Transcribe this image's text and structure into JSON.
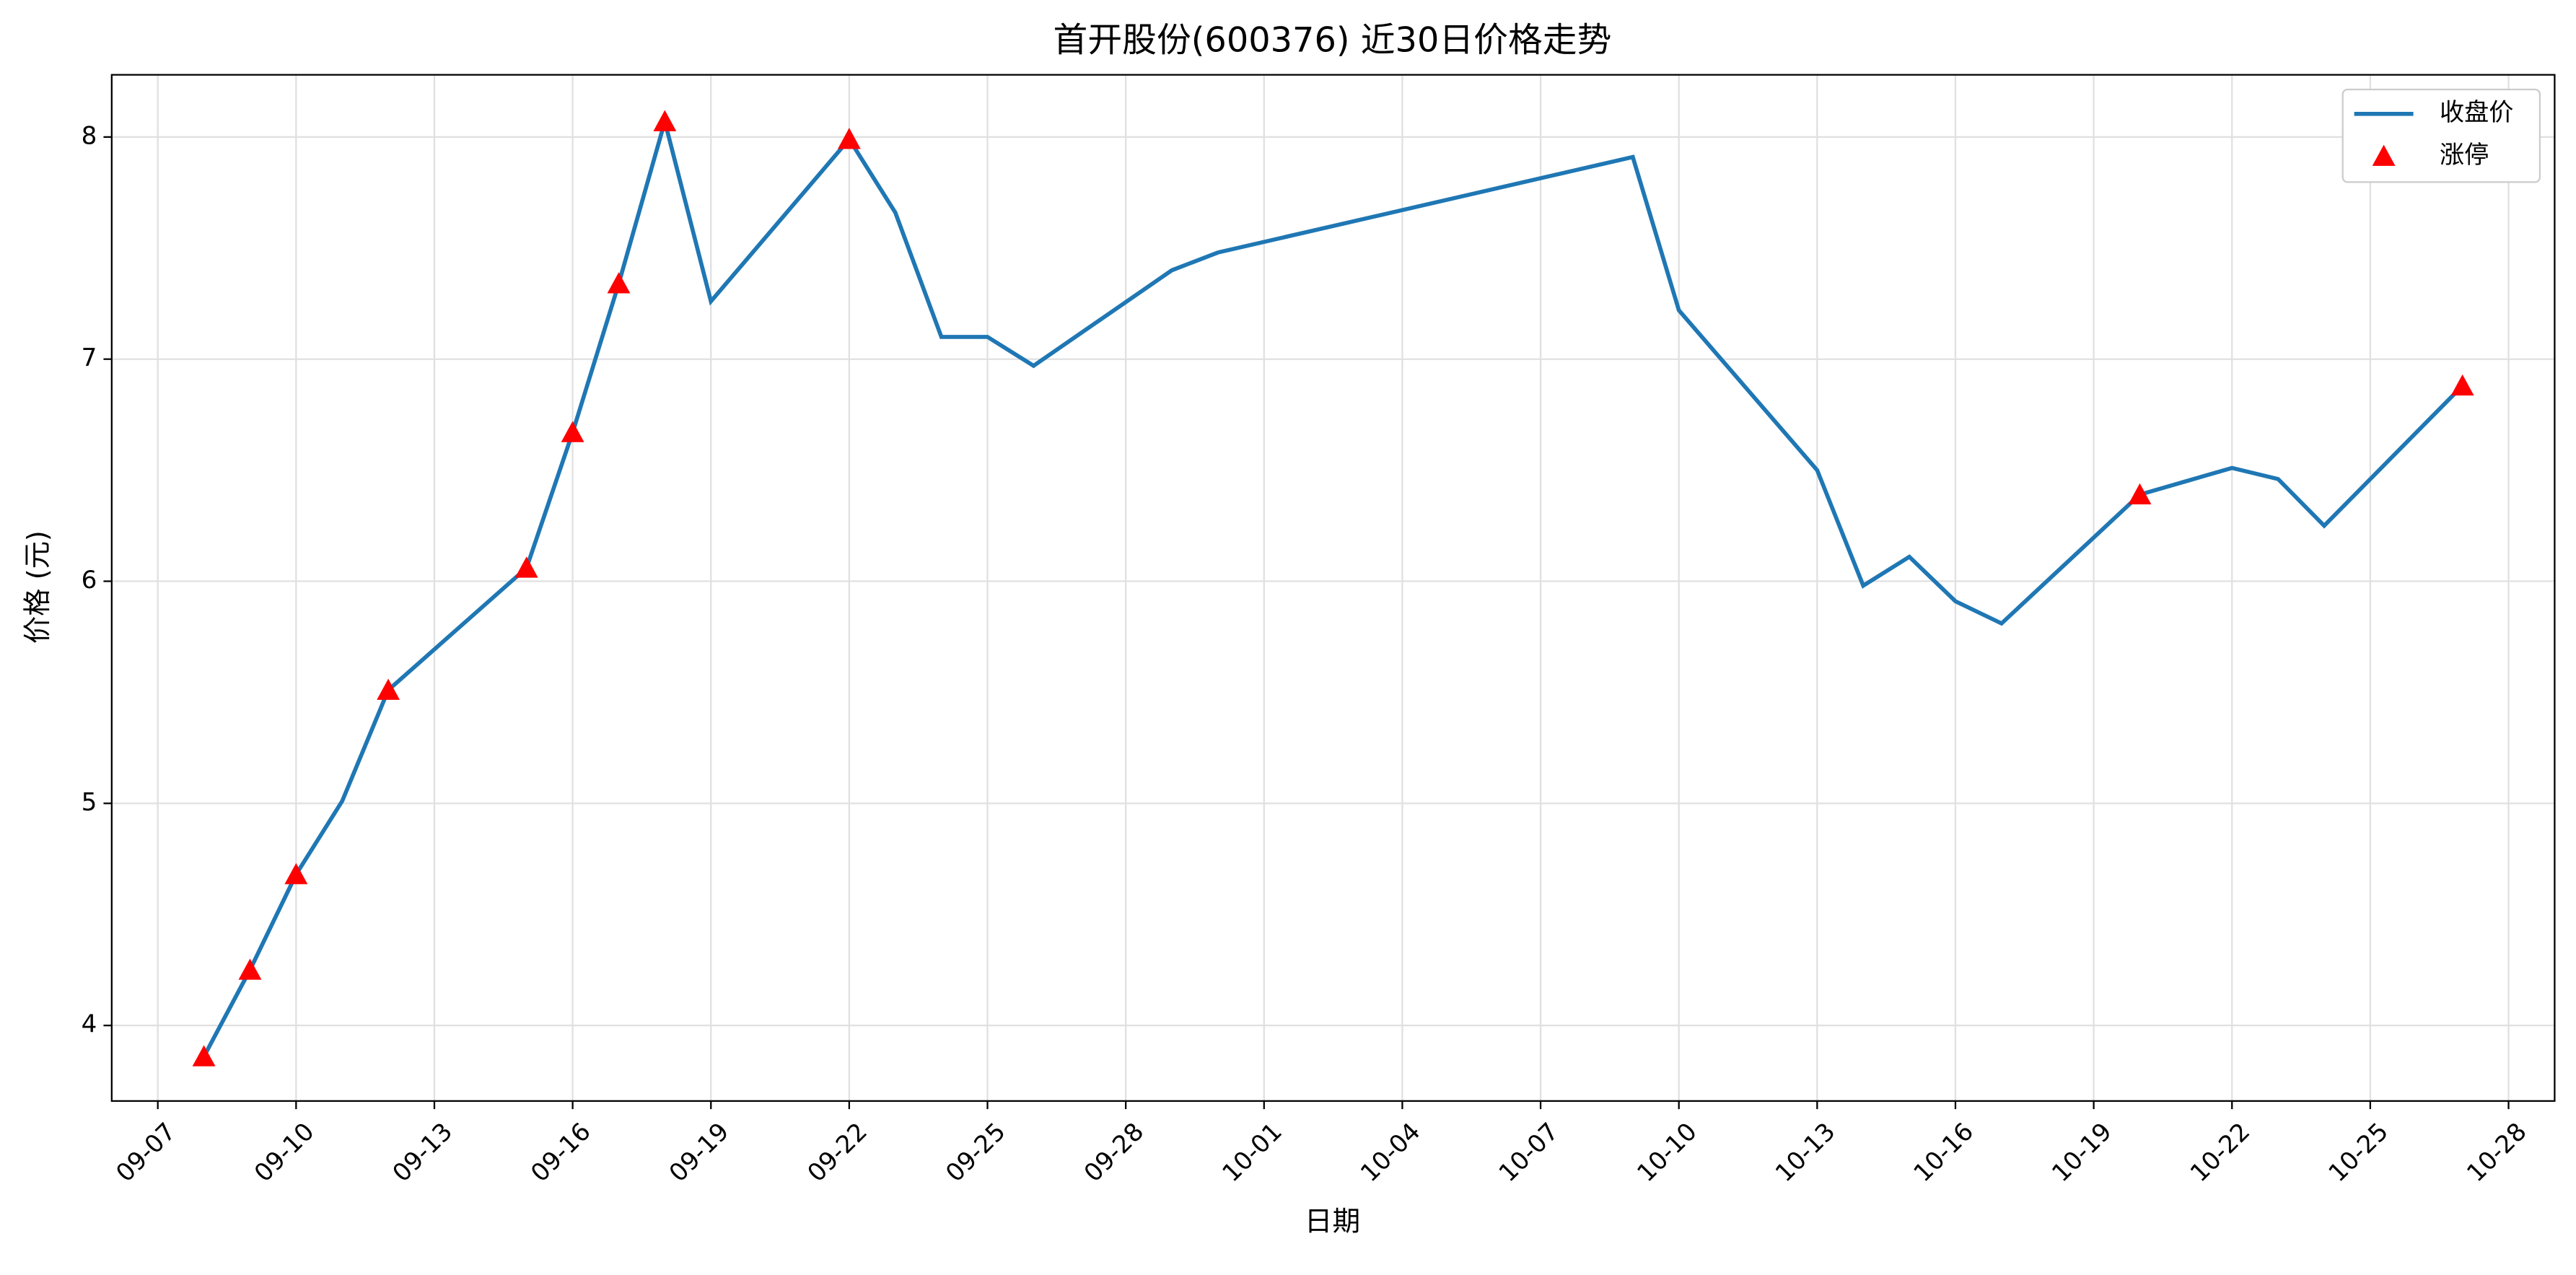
{
  "chart_data": {
    "type": "line",
    "title": "首开股份(600376) 近30日价格走势",
    "x_label": "日期",
    "y_label": "价格 (元)",
    "series": [
      {
        "name": "收盘价",
        "kind": "line",
        "color": "#1f77b4",
        "x": [
          "09-08",
          "09-09",
          "09-10",
          "09-11",
          "09-12",
          "09-15",
          "09-16",
          "09-17",
          "09-18",
          "09-19",
          "09-22",
          "09-23",
          "09-24",
          "09-25",
          "09-26",
          "09-29",
          "09-30",
          "10-09",
          "10-10",
          "10-13",
          "10-14",
          "10-15",
          "10-16",
          "10-17",
          "10-20",
          "10-21",
          "10-22",
          "10-23",
          "10-24",
          "10-27"
        ],
        "values": [
          3.86,
          4.25,
          4.68,
          5.01,
          5.51,
          6.06,
          6.67,
          7.34,
          8.07,
          7.26,
          7.99,
          7.66,
          7.1,
          7.1,
          6.97,
          7.4,
          7.48,
          7.91,
          7.22,
          6.5,
          5.98,
          6.11,
          5.91,
          5.81,
          6.39,
          6.45,
          6.51,
          6.46,
          6.25,
          6.88
        ]
      },
      {
        "name": "涨停",
        "kind": "scatter",
        "color": "#ff0000",
        "x": [
          "09-08",
          "09-09",
          "09-10",
          "09-12",
          "09-15",
          "09-16",
          "09-17",
          "09-18",
          "09-22",
          "10-20",
          "10-27"
        ],
        "values": [
          3.86,
          4.25,
          4.68,
          5.51,
          6.06,
          6.67,
          7.34,
          8.07,
          7.99,
          6.39,
          6.88
        ]
      }
    ],
    "xlim": [
      "09-06",
      "10-29"
    ],
    "xticks": [
      "09-07",
      "09-10",
      "09-13",
      "09-16",
      "09-19",
      "09-22",
      "09-25",
      "09-28",
      "10-01",
      "10-04",
      "10-07",
      "10-10",
      "10-13",
      "10-16",
      "10-19",
      "10-22",
      "10-25",
      "10-28"
    ],
    "ylim": [
      3.66,
      8.28
    ],
    "yticks": [
      4,
      5,
      6,
      7,
      8
    ],
    "grid": true,
    "legend": "upper right"
  }
}
